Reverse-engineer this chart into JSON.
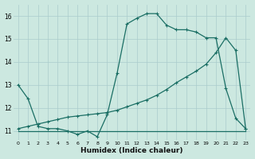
{
  "xlabel": "Humidex (Indice chaleur)",
  "bg_color": "#cce8e0",
  "grid_color": "#aacccc",
  "line_color": "#1a6e64",
  "xlim": [
    -0.5,
    23.5
  ],
  "ylim": [
    10.6,
    16.5
  ],
  "yticks": [
    11,
    12,
    13,
    14,
    15,
    16
  ],
  "xticks": [
    0,
    1,
    2,
    3,
    4,
    5,
    6,
    7,
    8,
    9,
    10,
    11,
    12,
    13,
    14,
    15,
    16,
    17,
    18,
    19,
    20,
    21,
    22,
    23
  ],
  "series1_x": [
    0,
    1,
    2,
    3,
    4,
    5,
    6,
    7,
    8,
    9,
    10,
    11,
    12,
    13,
    14,
    15,
    16,
    17,
    18,
    19,
    20,
    21,
    22,
    23
  ],
  "series1_y": [
    13.0,
    12.4,
    11.2,
    11.1,
    11.1,
    11.0,
    10.85,
    11.0,
    10.75,
    11.7,
    13.5,
    15.65,
    15.9,
    16.1,
    16.1,
    15.6,
    15.4,
    15.4,
    15.3,
    15.05,
    15.05,
    12.85,
    11.55,
    11.1
  ],
  "series2_x": [
    0,
    23
  ],
  "series2_y": [
    11.0,
    11.0
  ],
  "series3_x": [
    0,
    1,
    2,
    3,
    4,
    5,
    6,
    7,
    8,
    9,
    10,
    11,
    12,
    13,
    14,
    15,
    16,
    17,
    18,
    19,
    20,
    21,
    22,
    23
  ],
  "series3_y": [
    11.1,
    11.2,
    11.3,
    11.4,
    11.5,
    11.6,
    11.65,
    11.7,
    11.75,
    11.8,
    11.9,
    12.05,
    12.2,
    12.35,
    12.55,
    12.8,
    13.1,
    13.35,
    13.6,
    13.9,
    14.4,
    15.05,
    14.5,
    11.1
  ]
}
